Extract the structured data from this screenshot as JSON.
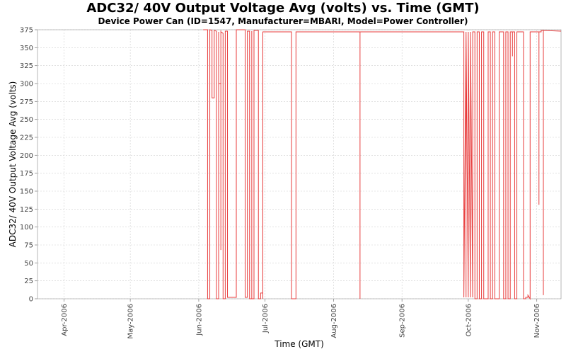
{
  "chart_data": {
    "type": "line",
    "title": "ADC32/ 40V Output Voltage Avg (volts) vs. Time (GMT)",
    "subtitle": "Device Power Can (ID=1547, Manufacturer=MBARI, Model=Power Controller)",
    "xlabel": "Time (GMT)",
    "ylabel": "ADC32/ 40V Output Voltage Avg (volts)",
    "xlim": [
      "2006-03-20",
      "2006-11-12"
    ],
    "ylim": [
      0,
      375
    ],
    "grid": true,
    "yticks": [
      0,
      25,
      50,
      75,
      100,
      125,
      150,
      175,
      200,
      225,
      250,
      275,
      300,
      325,
      350,
      375
    ],
    "xticks": [
      {
        "label": "Apr-2006",
        "date": "2006-04-01"
      },
      {
        "label": "May-2006",
        "date": "2006-05-01"
      },
      {
        "label": "Jun-2006",
        "date": "2006-06-01"
      },
      {
        "label": "Jul-2006",
        "date": "2006-07-01"
      },
      {
        "label": "Aug-2006",
        "date": "2006-08-01"
      },
      {
        "label": "Sep-2006",
        "date": "2006-09-01"
      },
      {
        "label": "Oct-2006",
        "date": "2006-10-01"
      },
      {
        "label": "Nov-2006",
        "date": "2006-11-01"
      }
    ],
    "series": [
      {
        "color": "#e83c3c",
        "points": [
          [
            "2006-06-03",
            375
          ],
          [
            "2006-06-05",
            375
          ],
          [
            "2006-06-05",
            0
          ],
          [
            "2006-06-06",
            0
          ],
          [
            "2006-06-06",
            375
          ],
          [
            "2006-06-07",
            374
          ],
          [
            "2006-06-07",
            280
          ],
          [
            "2006-06-08",
            280
          ],
          [
            "2006-06-08",
            374
          ],
          [
            "2006-06-09",
            373
          ],
          [
            "2006-06-09",
            0
          ],
          [
            "2006-06-10",
            0
          ],
          [
            "2006-06-10",
            372
          ],
          [
            "2006-06-10",
            300
          ],
          [
            "2006-06-11",
            300
          ],
          [
            "2006-06-11",
            374
          ],
          [
            "2006-06-11",
            68
          ],
          [
            "2006-06-11",
            372
          ],
          [
            "2006-06-12",
            370
          ],
          [
            "2006-06-12",
            0
          ],
          [
            "2006-06-13",
            0
          ],
          [
            "2006-06-13",
            373
          ],
          [
            "2006-06-14",
            373
          ],
          [
            "2006-06-14",
            2
          ],
          [
            "2006-06-18",
            2
          ],
          [
            "2006-06-18",
            375
          ],
          [
            "2006-06-22",
            375
          ],
          [
            "2006-06-22",
            2
          ],
          [
            "2006-06-23",
            2
          ],
          [
            "2006-06-23",
            373
          ],
          [
            "2006-06-24",
            373
          ],
          [
            "2006-06-24",
            0
          ],
          [
            "2006-06-25",
            0
          ],
          [
            "2006-06-25",
            373
          ],
          [
            "2006-06-25",
            0
          ],
          [
            "2006-06-26",
            0
          ],
          [
            "2006-06-26",
            374
          ],
          [
            "2006-06-28",
            374
          ],
          [
            "2006-06-28",
            0
          ],
          [
            "2006-06-29",
            0
          ],
          [
            "2006-06-29",
            8
          ],
          [
            "2006-06-30",
            8
          ],
          [
            "2006-06-30",
            0
          ],
          [
            "2006-06-30",
            372
          ],
          [
            "2006-07-13",
            372
          ],
          [
            "2006-07-13",
            0
          ],
          [
            "2006-07-15",
            0
          ],
          [
            "2006-07-15",
            372
          ],
          [
            "2006-08-13",
            372
          ],
          [
            "2006-08-13",
            0
          ],
          [
            "2006-08-13",
            372
          ],
          [
            "2006-09-29",
            372
          ],
          [
            "2006-09-29",
            2
          ],
          [
            "2006-09-29",
            372
          ],
          [
            "2006-09-29",
            2
          ],
          [
            "2006-09-30",
            372
          ],
          [
            "2006-09-30",
            2
          ],
          [
            "2006-09-30",
            372
          ],
          [
            "2006-10-01",
            2
          ],
          [
            "2006-10-01",
            372
          ],
          [
            "2006-10-02",
            2
          ],
          [
            "2006-10-02",
            372
          ],
          [
            "2006-10-03",
            2
          ],
          [
            "2006-10-03",
            372
          ],
          [
            "2006-10-04",
            372
          ],
          [
            "2006-10-04",
            0
          ],
          [
            "2006-10-05",
            0
          ],
          [
            "2006-10-05",
            372
          ],
          [
            "2006-10-06",
            372
          ],
          [
            "2006-10-06",
            0
          ],
          [
            "2006-10-07",
            0
          ],
          [
            "2006-10-07",
            372
          ],
          [
            "2006-10-08",
            372
          ],
          [
            "2006-10-08",
            0
          ],
          [
            "2006-10-10",
            0
          ],
          [
            "2006-10-10",
            372
          ],
          [
            "2006-10-11",
            372
          ],
          [
            "2006-10-11",
            0
          ],
          [
            "2006-10-12",
            0
          ],
          [
            "2006-10-12",
            372
          ],
          [
            "2006-10-13",
            372
          ],
          [
            "2006-10-13",
            0
          ],
          [
            "2006-10-15",
            0
          ],
          [
            "2006-10-15",
            372
          ],
          [
            "2006-10-17",
            372
          ],
          [
            "2006-10-17",
            0
          ],
          [
            "2006-10-18",
            0
          ],
          [
            "2006-10-18",
            372
          ],
          [
            "2006-10-19",
            372
          ],
          [
            "2006-10-19",
            0
          ],
          [
            "2006-10-20",
            0
          ],
          [
            "2006-10-20",
            372
          ],
          [
            "2006-10-21",
            372
          ],
          [
            "2006-10-21",
            338
          ],
          [
            "2006-10-21",
            372
          ],
          [
            "2006-10-22",
            372
          ],
          [
            "2006-10-22",
            0
          ],
          [
            "2006-10-23",
            0
          ],
          [
            "2006-10-23",
            372
          ],
          [
            "2006-10-26",
            372
          ],
          [
            "2006-10-26",
            0
          ],
          [
            "2006-10-27",
            0
          ],
          [
            "2006-10-27",
            2
          ],
          [
            "2006-10-28",
            2
          ],
          [
            "2006-10-28",
            5
          ],
          [
            "2006-10-29",
            0
          ],
          [
            "2006-10-29",
            372
          ],
          [
            "2006-11-02",
            372
          ],
          [
            "2006-11-02",
            131
          ],
          [
            "2006-11-02",
            372
          ],
          [
            "2006-11-03",
            372
          ],
          [
            "2006-11-03",
            374
          ],
          [
            "2006-11-04",
            374
          ],
          [
            "2006-11-04",
            5
          ],
          [
            "2006-11-04",
            374
          ],
          [
            "2006-11-12",
            373
          ]
        ]
      }
    ]
  }
}
